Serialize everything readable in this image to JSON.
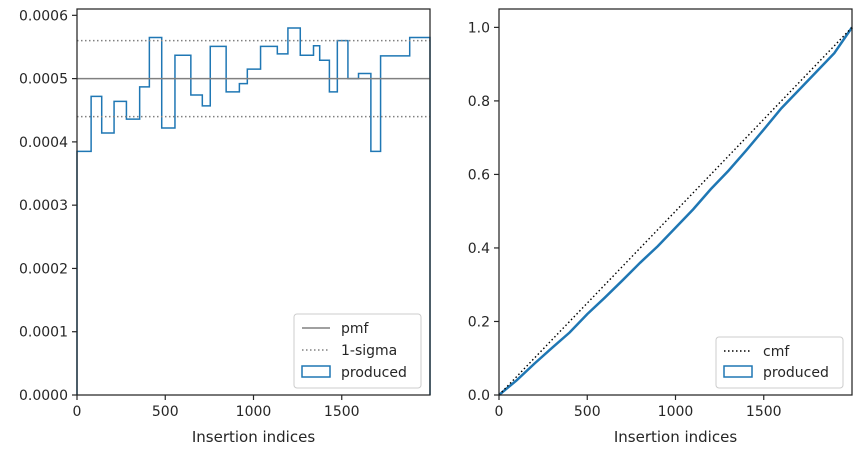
{
  "chart_data": [
    {
      "type": "line",
      "subtype": "step-histogram",
      "xlabel": "Insertion indices",
      "xlim": [
        0,
        2000
      ],
      "ylim": [
        0,
        0.00061
      ],
      "xticks": [
        0,
        500,
        1000,
        1500
      ],
      "xtick_labels": [
        "0",
        "500",
        "1000",
        "1500"
      ],
      "yticks": [
        0,
        0.0001,
        0.0002,
        0.0003,
        0.0004,
        0.0005,
        0.0006
      ],
      "ytick_labels": [
        "0.0000",
        "0.0001",
        "0.0002",
        "0.0003",
        "0.0004",
        "0.0005",
        "0.0006"
      ],
      "grid": false,
      "legend_position": "lower-right",
      "series": [
        {
          "name": "produced",
          "style": "step",
          "color": "#1f77b4",
          "bin_edges": [
            0,
            80,
            140,
            210,
            280,
            355,
            410,
            480,
            555,
            645,
            710,
            755,
            845,
            920,
            965,
            1040,
            1135,
            1195,
            1265,
            1340,
            1375,
            1430,
            1475,
            1535,
            1595,
            1665,
            1720,
            1780,
            1835,
            1885,
            1945,
            2000
          ],
          "values": [
            0.000385,
            0.000472,
            0.000414,
            0.000464,
            0.000436,
            0.000487,
            0.000565,
            0.000422,
            0.000537,
            0.000474,
            0.000457,
            0.000551,
            0.000479,
            0.000492,
            0.000515,
            0.000551,
            0.000539,
            0.00058,
            0.000537,
            0.000552,
            0.000529,
            0.000479,
            0.00056,
            0.0005,
            0.000508,
            0.000385,
            0.000536,
            0.000536,
            0.000536,
            0.000565,
            0.000565
          ]
        },
        {
          "name": "pmf",
          "style": "hline",
          "color": "#808080",
          "y": 0.0005
        },
        {
          "name": "1-sigma",
          "style": "hline-dotted",
          "color": "#808080",
          "y": [
            0.00044,
            0.00056
          ]
        }
      ],
      "legend": [
        {
          "label": "pmf",
          "kind": "solid-line",
          "color": "#808080"
        },
        {
          "label": "1-sigma",
          "kind": "dotted-line",
          "color": "#808080"
        },
        {
          "label": "produced",
          "kind": "box",
          "color": "#1f77b4"
        }
      ]
    },
    {
      "type": "line",
      "xlabel": "Insertion indices",
      "xlim": [
        0,
        2000
      ],
      "ylim": [
        0,
        1.05
      ],
      "xticks": [
        0,
        500,
        1000,
        1500
      ],
      "xtick_labels": [
        "0",
        "500",
        "1000",
        "1500"
      ],
      "yticks": [
        0,
        0.2,
        0.4,
        0.6,
        0.8,
        1.0
      ],
      "ytick_labels": [
        "0.0",
        "0.2",
        "0.4",
        "0.6",
        "0.8",
        "1.0"
      ],
      "grid": false,
      "legend_position": "lower-right",
      "series": [
        {
          "name": "produced",
          "style": "line",
          "color": "#1f77b4",
          "x": [
            0,
            100,
            200,
            300,
            400,
            500,
            600,
            700,
            800,
            900,
            1000,
            1100,
            1200,
            1300,
            1400,
            1500,
            1600,
            1700,
            1800,
            1900,
            2000
          ],
          "y": [
            0,
            0.04,
            0.085,
            0.128,
            0.17,
            0.22,
            0.265,
            0.312,
            0.36,
            0.405,
            0.455,
            0.505,
            0.56,
            0.61,
            0.665,
            0.722,
            0.78,
            0.83,
            0.88,
            0.93,
            1.0
          ]
        },
        {
          "name": "cmf",
          "style": "dotted",
          "color": "#000000",
          "x": [
            0,
            2000
          ],
          "y": [
            0,
            1.0
          ]
        }
      ],
      "legend": [
        {
          "label": "cmf",
          "kind": "dotted-line",
          "color": "#000000"
        },
        {
          "label": "produced",
          "kind": "box",
          "color": "#1f77b4"
        }
      ]
    }
  ]
}
